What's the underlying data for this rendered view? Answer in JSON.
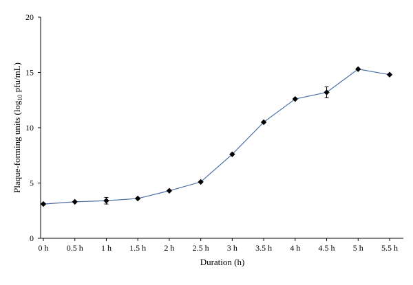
{
  "chart_data": {
    "type": "line",
    "title": "",
    "xlabel": "Duration (h)",
    "ylabel": {
      "prefix": "Plaque-forming units (log",
      "subscript": "10",
      "suffix": " pfu/mL)"
    },
    "categories": [
      "0 h",
      "0.5 h",
      "1 h",
      "1.5 h",
      "2 h",
      "2.5 h",
      "3 h",
      "3.5 h",
      "4 h",
      "4.5 h",
      "5 h",
      "5.5 h"
    ],
    "yticks": [
      "0",
      "5",
      "10",
      "15",
      "20"
    ],
    "ylim": [
      0,
      20
    ],
    "grid": false,
    "legend": "none",
    "series": [
      {
        "values": [
          3.1,
          3.3,
          3.4,
          3.6,
          4.3,
          5.1,
          7.6,
          10.5,
          12.6,
          13.2,
          15.3,
          14.8
        ],
        "errors": [
          0.05,
          0.1,
          0.3,
          0.1,
          0.15,
          0.1,
          0.1,
          0.1,
          0.1,
          0.5,
          0.1,
          0.1
        ],
        "line_color": "#4a6fa5",
        "marker_color": "#000000",
        "marker": "diamond"
      }
    ]
  }
}
